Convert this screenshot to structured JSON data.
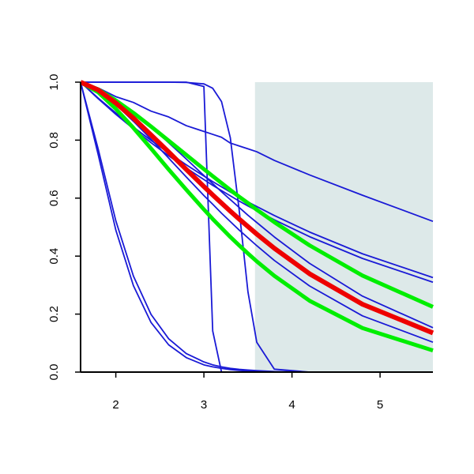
{
  "chart_data": {
    "type": "line",
    "x": [
      1.6,
      1.8,
      2.0,
      2.2,
      2.4,
      2.6,
      2.8,
      3.0,
      3.1,
      3.2,
      3.3,
      3.4,
      3.5,
      3.6,
      3.8,
      4.2,
      4.8,
      5.6
    ],
    "shaded_region": {
      "x": [
        3.58,
        5.6
      ],
      "color": "#dde9e9"
    },
    "series": [
      {
        "color": "#1a1ad6",
        "line_width": 1.8,
        "values": [
          1,
          0.98,
          0.95,
          0.93,
          0.9,
          0.88,
          0.85,
          0.83,
          0.82,
          0.81,
          0.79,
          0.78,
          0.77,
          0.76,
          0.73,
          0.68,
          0.61,
          0.52
        ]
      },
      {
        "color": "#1a1ad6",
        "line_width": 1.8,
        "values": [
          1,
          0.943,
          0.889,
          0.839,
          0.791,
          0.746,
          0.704,
          0.664,
          0.644,
          0.626,
          0.608,
          0.59,
          0.573,
          0.557,
          0.525,
          0.467,
          0.392,
          0.31
        ]
      },
      {
        "color": "#1a1ad6",
        "line_width": 1.8,
        "values": [
          1,
          0.945,
          0.894,
          0.845,
          0.799,
          0.756,
          0.715,
          0.676,
          0.657,
          0.639,
          0.621,
          0.604,
          0.587,
          0.571,
          0.54,
          0.483,
          0.408,
          0.326
        ]
      },
      {
        "color": "#1a1ad6",
        "line_width": 1.8,
        "values": [
          1,
          0.979,
          0.942,
          0.897,
          0.846,
          0.791,
          0.735,
          0.678,
          0.65,
          0.622,
          0.595,
          0.568,
          0.541,
          0.516,
          0.466,
          0.375,
          0.262,
          0.153
        ]
      },
      {
        "color": "#1a1ad6",
        "line_width": 1.8,
        "values": [
          1,
          0.971,
          0.923,
          0.865,
          0.803,
          0.738,
          0.673,
          0.609,
          0.579,
          0.548,
          0.519,
          0.49,
          0.463,
          0.436,
          0.385,
          0.297,
          0.194,
          0.103
        ]
      },
      {
        "color": "#1a1ad6",
        "line_width": 1.8,
        "values": [
          1,
          0.75,
          0.49,
          0.298,
          0.171,
          0.094,
          0.05,
          0.025,
          0.018,
          0.013,
          0.0087,
          0.006,
          0.004,
          0.003,
          0.001,
          0,
          0,
          0
        ]
      },
      {
        "color": "#1a1ad6",
        "line_width": 1.8,
        "values": [
          1,
          0.769,
          0.522,
          0.331,
          0.199,
          0.115,
          0.064,
          0.035,
          0.025,
          0.018,
          0.013,
          0.0094,
          0.007,
          0.005,
          0.002,
          0,
          0,
          0
        ]
      },
      {
        "color": "#1a1ad6",
        "line_width": 1.8,
        "values": [
          1,
          1,
          1,
          1,
          1,
          1,
          1,
          0.985,
          0.142,
          0,
          0,
          0,
          0,
          0,
          0,
          0,
          0,
          0
        ]
      },
      {
        "color": "#1a1ad6",
        "line_width": 1.8,
        "values": [
          1,
          1,
          1,
          1,
          1,
          1,
          0.999,
          0.994,
          0.979,
          0.933,
          0.808,
          0.56,
          0.277,
          0.103,
          0.01,
          0,
          0,
          0
        ]
      },
      {
        "color": "#00ee00",
        "line_width": 5,
        "values": [
          1,
          0.975,
          0.937,
          0.894,
          0.847,
          0.798,
          0.749,
          0.7,
          0.676,
          0.652,
          0.628,
          0.605,
          0.583,
          0.56,
          0.517,
          0.437,
          0.333,
          0.225
        ]
      },
      {
        "color": "#00ee00",
        "line_width": 5,
        "values": [
          1,
          0.965,
          0.908,
          0.842,
          0.771,
          0.699,
          0.629,
          0.561,
          0.528,
          0.497,
          0.466,
          0.437,
          0.409,
          0.382,
          0.332,
          0.246,
          0.152,
          0.0746
        ]
      },
      {
        "color": "#ee0000",
        "line_width": 6,
        "values": [
          1,
          0.973,
          0.928,
          0.876,
          0.818,
          0.759,
          0.699,
          0.64,
          0.611,
          0.583,
          0.555,
          0.528,
          0.502,
          0.476,
          0.427,
          0.339,
          0.234,
          0.135
        ]
      }
    ],
    "xlim": [
      1.6,
      5.6
    ],
    "ylim": [
      0,
      1
    ],
    "xticks": [
      2,
      3,
      4,
      5
    ],
    "yticks": [
      {
        "value": 0,
        "label": "0.0"
      },
      0.2,
      0.4,
      0.6,
      0.8,
      {
        "value": 1,
        "label": "1.0"
      }
    ]
  }
}
